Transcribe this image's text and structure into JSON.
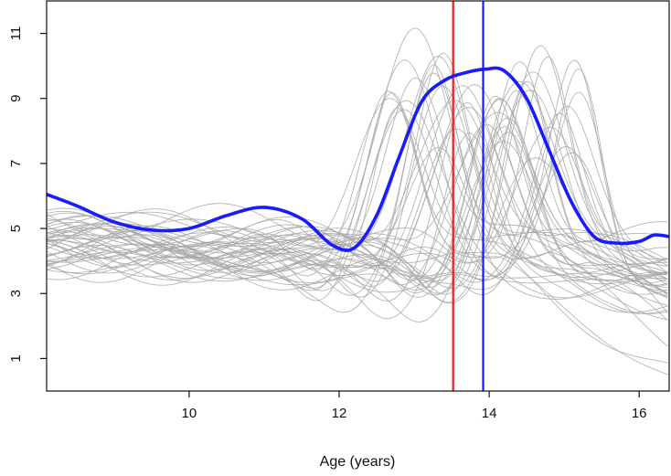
{
  "chart_data": {
    "type": "line",
    "title": "",
    "xlabel": "Age (years)",
    "ylabel": "",
    "xlim": [
      8.1,
      16.4
    ],
    "ylim": [
      0.0,
      12.0
    ],
    "x_ticks": [
      10,
      12,
      14,
      16
    ],
    "x_tick_labels": [
      "10",
      "12",
      "14",
      "16"
    ],
    "y_ticks": [
      1,
      3,
      5,
      7,
      9,
      11
    ],
    "y_tick_labels": [
      "1",
      "3",
      "5",
      "7",
      "9",
      "11"
    ],
    "grid": false,
    "colors": {
      "mean_curve": "#1a1aff",
      "individual_curves": "#a8a8a8",
      "red_line": "#ee1c1c",
      "blue_line": "#1a1aff",
      "axis": "#111111"
    },
    "vertical_lines": [
      {
        "name": "red-vertical-line",
        "x": 13.52,
        "color": "#ee1c1c"
      },
      {
        "name": "blue-vertical-line",
        "x": 13.92,
        "color": "#1a1aff"
      }
    ],
    "series": [
      {
        "name": "mean-curve",
        "color": "#1a1aff",
        "x": [
          8.1,
          8.5,
          9.0,
          9.5,
          10.0,
          10.5,
          11.0,
          11.5,
          11.9,
          12.2,
          12.5,
          12.8,
          13.1,
          13.4,
          13.7,
          13.95,
          14.2,
          14.5,
          14.8,
          15.1,
          15.4,
          15.7,
          16.0,
          16.2,
          16.4
        ],
        "values": [
          6.05,
          5.7,
          5.2,
          4.95,
          5.0,
          5.4,
          5.65,
          5.3,
          4.5,
          4.4,
          5.4,
          7.2,
          8.9,
          9.55,
          9.8,
          9.9,
          9.85,
          9.0,
          7.4,
          5.8,
          4.75,
          4.55,
          4.6,
          4.8,
          4.75
        ]
      }
    ],
    "individual_curves": {
      "count": 48,
      "color": "#a8a8a8",
      "description_values_only": true
    }
  }
}
